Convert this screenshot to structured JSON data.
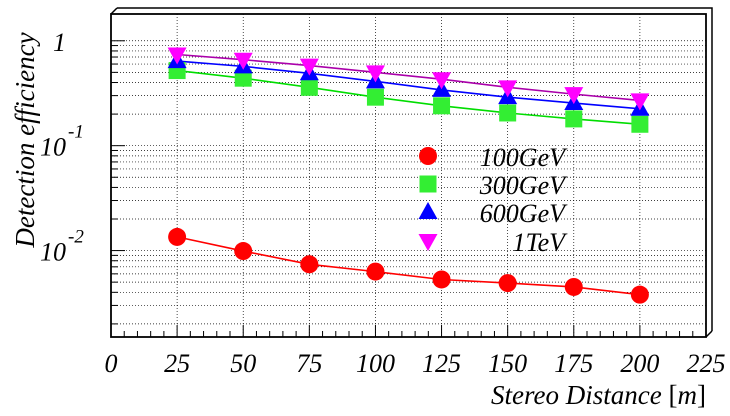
{
  "chart_data": {
    "type": "scatter",
    "xlabel": "Stereo Distance [m]",
    "ylabel": "Detection efficiency",
    "y_scale": "log",
    "xlim": [
      0,
      225
    ],
    "ylim": [
      0.0015,
      1.8
    ],
    "x_ticks": [
      "0",
      "25",
      "50",
      "75",
      "100",
      "125",
      "150",
      "175",
      "200",
      "225"
    ],
    "y_ticks": [
      {
        "base": "1",
        "exp": ""
      },
      {
        "base": "10",
        "exp": "-1"
      },
      {
        "base": "10",
        "exp": "-2"
      }
    ],
    "grid": true,
    "legend_position": "center-right",
    "x": [
      25,
      50,
      75,
      100,
      125,
      150,
      175,
      200
    ],
    "series": [
      {
        "name": "100GeV",
        "marker": "circle",
        "color": "#ff0000",
        "line_color": "#ff0000",
        "values": [
          0.0135,
          0.0099,
          0.0074,
          0.0063,
          0.0053,
          0.0049,
          0.0045,
          0.0038
        ]
      },
      {
        "name": "300GeV",
        "marker": "square",
        "color": "#33ee33",
        "line_color": "#00dd00",
        "values": [
          0.52,
          0.44,
          0.36,
          0.29,
          0.24,
          0.205,
          0.18,
          0.16
        ]
      },
      {
        "name": "600GeV",
        "marker": "triangle-up",
        "color": "#0000ff",
        "line_color": "#0000ff",
        "values": [
          0.64,
          0.57,
          0.49,
          0.41,
          0.34,
          0.29,
          0.255,
          0.225
        ]
      },
      {
        "name": "1TeV",
        "marker": "triangle-down",
        "color": "#ff00ff",
        "line_color": "#aa00aa",
        "values": [
          0.74,
          0.66,
          0.58,
          0.5,
          0.43,
          0.36,
          0.31,
          0.27
        ]
      }
    ]
  }
}
